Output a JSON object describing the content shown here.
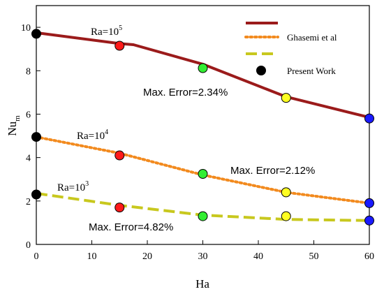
{
  "chart_data": {
    "type": "line",
    "xlabel": "Ha",
    "ylabel": {
      "base": "Nu",
      "sub": "m"
    },
    "xlim": [
      0,
      60
    ],
    "ylim": [
      0,
      11
    ],
    "xticks": [
      0,
      10,
      20,
      30,
      40,
      50,
      60
    ],
    "yticks": [
      0,
      2,
      4,
      6,
      8,
      10
    ],
    "grid": false,
    "legend": {
      "placement": "top-right",
      "entries": [
        {
          "label": "",
          "style": "solid",
          "color": "#9B1B1B"
        },
        {
          "label": "Ghasemi et al",
          "style": "dotted",
          "color": "#F28A1E"
        },
        {
          "label": "",
          "style": "dashed",
          "color": "#C8C81E"
        },
        {
          "label": "Present Work",
          "style": "marker",
          "color": "#000000"
        }
      ]
    },
    "series": [
      {
        "style": "solid",
        "color": "#9B1B1B",
        "x": [
          0,
          15,
          17.5,
          30,
          45,
          60
        ],
        "y": [
          9.75,
          9.25,
          9.2,
          8.3,
          6.8,
          5.85
        ]
      },
      {
        "style": "dotted",
        "color": "#F28A1E",
        "x": [
          0,
          15,
          30,
          45,
          60
        ],
        "y": [
          4.95,
          4.2,
          3.2,
          2.4,
          1.9
        ]
      },
      {
        "style": "dashed",
        "color": "#C8C81E",
        "x": [
          0,
          15,
          30,
          45,
          60
        ],
        "y": [
          2.35,
          1.8,
          1.35,
          1.15,
          1.1
        ]
      }
    ],
    "points": [
      {
        "x": 0,
        "y": 9.7,
        "color": "#000000"
      },
      {
        "x": 15,
        "y": 9.15,
        "color": "#FF1A1A"
      },
      {
        "x": 30,
        "y": 8.12,
        "color": "#33EE33"
      },
      {
        "x": 45,
        "y": 6.75,
        "color": "#FFFF22"
      },
      {
        "x": 60,
        "y": 5.8,
        "color": "#1A1AFF"
      },
      {
        "x": 0,
        "y": 4.95,
        "color": "#000000"
      },
      {
        "x": 15,
        "y": 4.1,
        "color": "#FF1A1A"
      },
      {
        "x": 30,
        "y": 3.25,
        "color": "#33EE33"
      },
      {
        "x": 45,
        "y": 2.4,
        "color": "#FFFF22"
      },
      {
        "x": 60,
        "y": 1.9,
        "color": "#1A1AFF"
      },
      {
        "x": 0,
        "y": 2.3,
        "color": "#000000"
      },
      {
        "x": 15,
        "y": 1.7,
        "color": "#FF1A1A"
      },
      {
        "x": 30,
        "y": 1.3,
        "color": "#33EE33"
      },
      {
        "x": 45,
        "y": 1.3,
        "color": "#FFFF22"
      },
      {
        "x": 60,
        "y": 1.1,
        "color": "#1A1AFF"
      }
    ],
    "annotations": [
      {
        "id": "ra5",
        "base": "Ra=10",
        "sup": "5"
      },
      {
        "id": "ra4",
        "base": "Ra=10",
        "sup": "4"
      },
      {
        "id": "ra3",
        "base": "Ra=10",
        "sup": "3"
      },
      {
        "id": "err1",
        "text": "Max. Error=2.34%"
      },
      {
        "id": "err2",
        "text": "Max. Error=2.12%"
      },
      {
        "id": "err3",
        "text": "Max. Error=4.82%"
      }
    ]
  }
}
